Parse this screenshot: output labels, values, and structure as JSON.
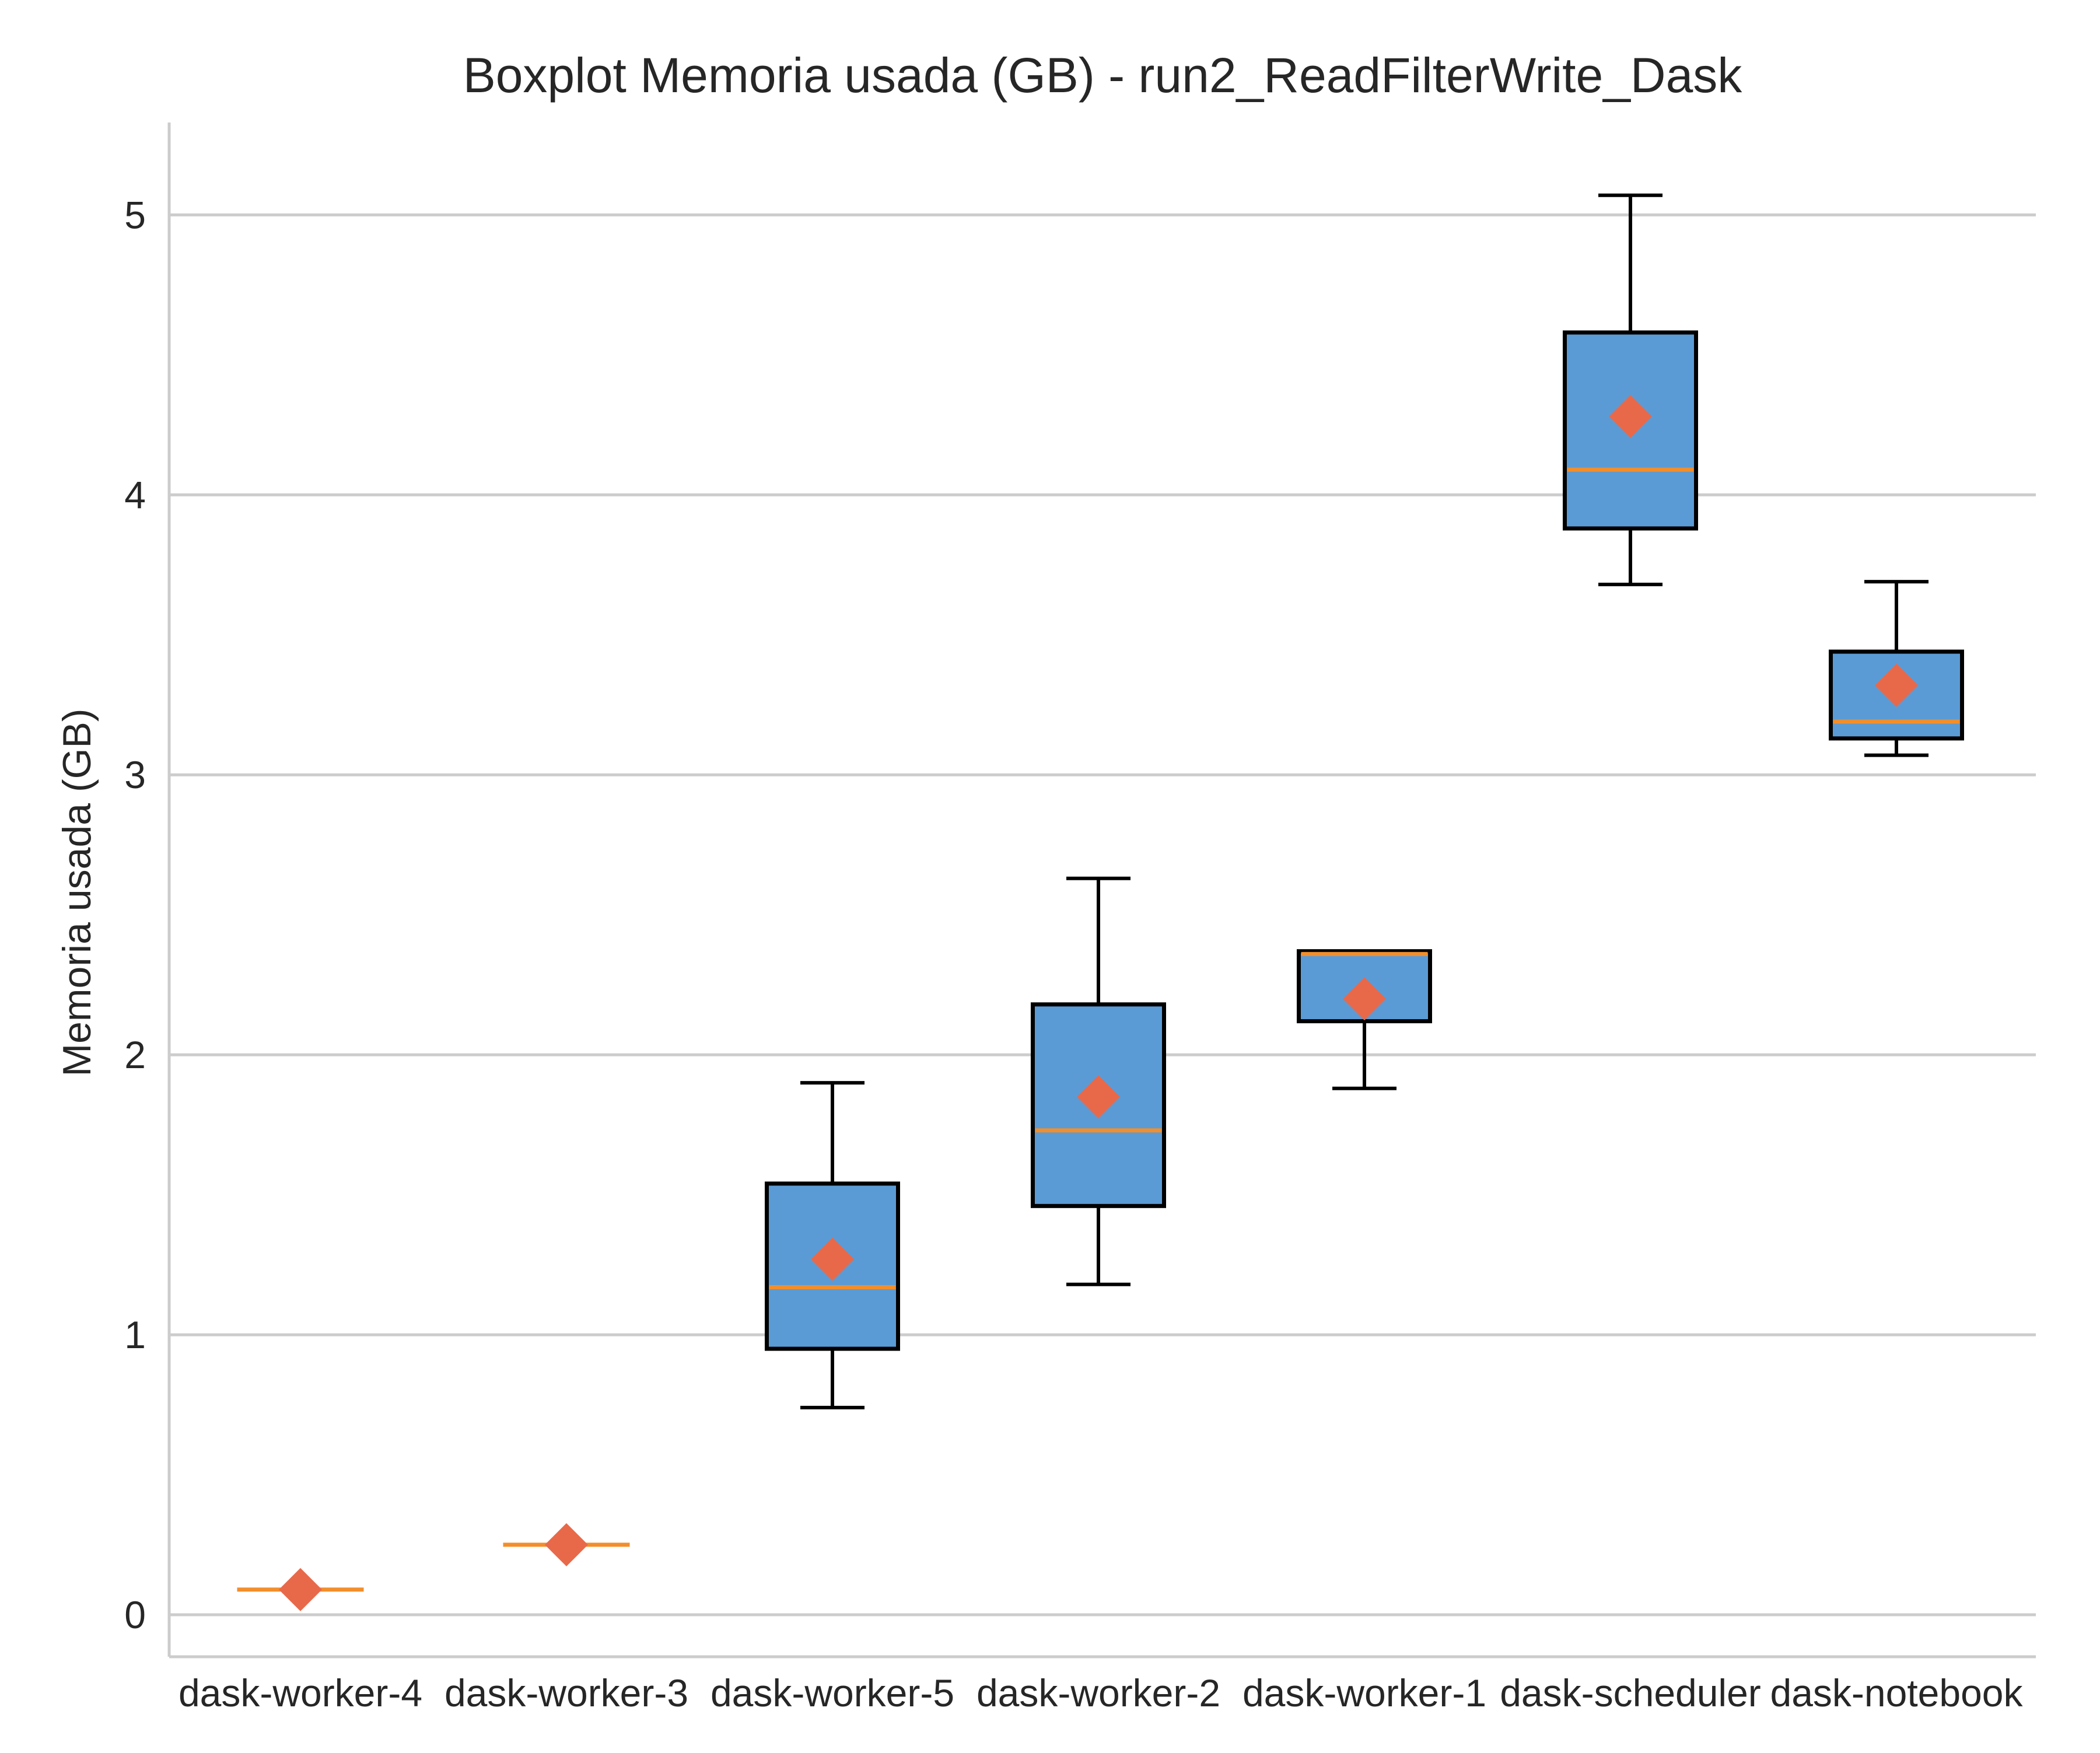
{
  "chart_data": {
    "type": "boxplot",
    "title": "Boxplot Memoria usada (GB) - run2_ReadFilterWrite_Dask",
    "xlabel": "",
    "ylabel": "Memoria usada (GB)",
    "ylim": [
      -0.15,
      5.33
    ],
    "yticks": [
      0,
      1,
      2,
      3,
      4,
      5
    ],
    "grid": "horizontal",
    "categories": [
      "dask-worker-4",
      "dask-worker-3",
      "dask-worker-5",
      "dask-worker-2",
      "dask-worker-1",
      "dask-scheduler",
      "dask-notebook"
    ],
    "boxes": [
      {
        "name": "dask-worker-4",
        "whislo": 0.09,
        "q1": 0.09,
        "median": 0.09,
        "q3": 0.09,
        "whishi": 0.09,
        "mean": 0.09
      },
      {
        "name": "dask-worker-3",
        "whislo": 0.25,
        "q1": 0.25,
        "median": 0.25,
        "q3": 0.25,
        "whishi": 0.25,
        "mean": 0.25
      },
      {
        "name": "dask-worker-5",
        "whislo": 0.74,
        "q1": 0.95,
        "median": 1.17,
        "q3": 1.54,
        "whishi": 1.9,
        "mean": 1.27
      },
      {
        "name": "dask-worker-2",
        "whislo": 1.18,
        "q1": 1.46,
        "median": 1.73,
        "q3": 2.18,
        "whishi": 2.63,
        "mean": 1.85
      },
      {
        "name": "dask-worker-1",
        "whislo": 1.88,
        "q1": 2.12,
        "median": 2.36,
        "q3": 2.37,
        "whishi": 2.37,
        "mean": 2.2
      },
      {
        "name": "dask-scheduler",
        "whislo": 3.68,
        "q1": 3.88,
        "median": 4.09,
        "q3": 4.58,
        "whishi": 5.07,
        "mean": 4.28
      },
      {
        "name": "dask-notebook",
        "whislo": 3.07,
        "q1": 3.13,
        "median": 3.19,
        "q3": 3.44,
        "whishi": 3.69,
        "mean": 3.32
      }
    ],
    "colors": {
      "box_fill": "#5b9bd5",
      "box_edge": "#000000",
      "median": "#f28e2b",
      "mean_marker": "#e8694a",
      "grid": "#cccccc",
      "spine": "#cccccc",
      "text": "#262626"
    }
  }
}
